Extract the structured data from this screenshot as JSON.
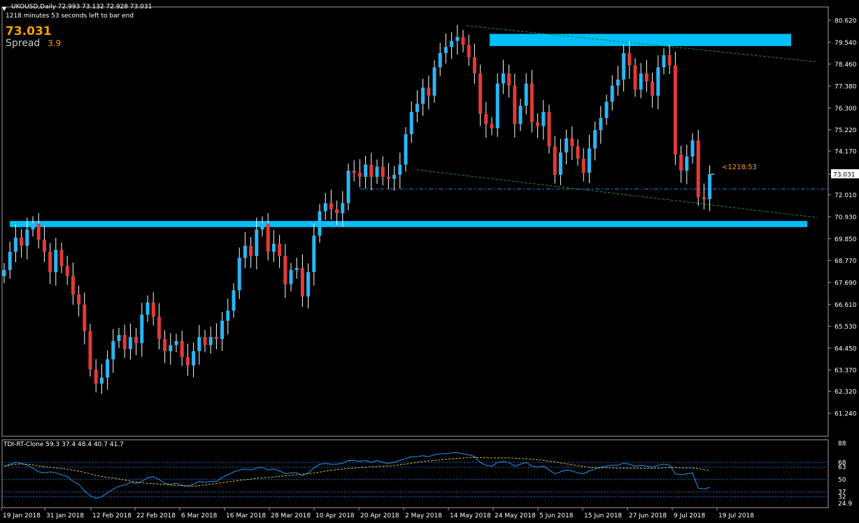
{
  "header": {
    "symbol_line": "UKOUSD,Daily  72.993 73.132 72.928 73.031",
    "countdown_line": "1218 minutes 53 seconds left to bar end",
    "last_price": "73.031",
    "spread_label": "Spread",
    "spread_value": "3.9"
  },
  "timer_label": "<1218:53",
  "indicator": {
    "label": "TDI-RT-Clone 59.3 37.4 48.4 40.7 41.7"
  },
  "colors": {
    "bull": "#29b6f6",
    "bear": "#e53935",
    "zone": "#00bfff",
    "trend": "#2e7d32",
    "dashed": "#1e88e5",
    "yellow": "#f5a300",
    "tdi": "#2196f3",
    "signal": "#d4c21a",
    "levels": "#1565c0"
  },
  "chart_data": {
    "type": "candlestick",
    "symbol": "UKOUSD",
    "timeframe": "Daily",
    "price_ylim": [
      61.24,
      80.62
    ],
    "price_ticks": [
      "80.620",
      "79.540",
      "78.460",
      "77.380",
      "76.300",
      "75.220",
      "74.170",
      "73.031",
      "72.010",
      "70.930",
      "69.850",
      "68.770",
      "67.690",
      "66.610",
      "65.530",
      "64.450",
      "63.370",
      "62.320",
      "61.240"
    ],
    "current_price": 73.031,
    "indicator_ylim": [
      24.9,
      88
    ],
    "indicator_ticks": [
      "88",
      "68",
      "63",
      "50",
      "37",
      "32",
      "24.9"
    ],
    "indicator_levels": [
      68,
      63,
      50,
      37,
      32
    ],
    "x_labels": [
      "19 Jan 2018",
      "31 Jan 2018",
      "12 Feb 2018",
      "22 Feb 2018",
      "6 Mar 2018",
      "16 Mar 2018",
      "28 Mar 2018",
      "10 Apr 2018",
      "20 Apr 2018",
      "2 May 2018",
      "14 May 2018",
      "24 May 2018",
      "5 Jun 2018",
      "15 Jun 2018",
      "27 Jun 2018",
      "9 Jul 2018",
      "19 Jul 2018"
    ],
    "closes": [
      68.3,
      69.2,
      69.9,
      69.5,
      70.3,
      70.6,
      69.8,
      69.2,
      68.2,
      69.3,
      68.5,
      68.0,
      67.1,
      66.6,
      65.3,
      63.4,
      62.7,
      63.0,
      63.9,
      64.8,
      65.1,
      64.4,
      65.0,
      64.7,
      66.1,
      66.7,
      66.0,
      64.9,
      64.3,
      64.6,
      64.8,
      64.0,
      63.6,
      64.3,
      65.0,
      64.6,
      65.0,
      64.9,
      65.8,
      66.3,
      67.3,
      68.9,
      69.5,
      69.0,
      70.3,
      70.6,
      69.2,
      69.6,
      69.0,
      67.6,
      68.3,
      68.4,
      67.0,
      68.2,
      70.0,
      71.2,
      71.6,
      71.3,
      71.1,
      71.6,
      73.2,
      73.1,
      72.9,
      73.5,
      72.9,
      73.4,
      72.9,
      72.8,
      73.0,
      73.5,
      75.0,
      76.1,
      76.5,
      77.3,
      76.9,
      78.3,
      79.0,
      79.3,
      79.6,
      79.8,
      79.4,
      78.8,
      78.0,
      76.0,
      75.5,
      75.3,
      77.5,
      78.0,
      77.4,
      75.5,
      76.4,
      77.5,
      75.6,
      75.4,
      76.1,
      74.4,
      73.0,
      74.1,
      74.8,
      74.4,
      73.8,
      73.1,
      74.3,
      75.2,
      75.8,
      76.6,
      77.4,
      77.7,
      79.0,
      78.4,
      77.2,
      78.0,
      77.6,
      76.9,
      78.3,
      78.9,
      78.4,
      74.0,
      73.2,
      73.9,
      74.7,
      71.9,
      71.8,
      73.031
    ],
    "tdi_values": [
      64,
      66,
      68,
      67,
      65,
      62,
      58,
      57,
      58,
      57,
      55,
      53,
      48,
      45,
      38,
      33,
      30,
      32,
      36,
      40,
      43,
      44,
      47,
      46,
      48,
      52,
      53,
      50,
      46,
      45,
      46,
      44,
      43,
      45,
      48,
      47,
      48,
      48,
      52,
      55,
      58,
      60,
      61,
      60,
      62,
      63,
      60,
      61,
      59,
      56,
      57,
      57,
      54,
      57,
      62,
      66,
      67,
      66,
      66,
      67,
      70,
      70,
      69,
      70,
      68,
      70,
      68,
      67,
      68,
      70,
      72,
      74,
      74,
      75,
      74,
      76,
      77,
      77,
      78,
      78,
      77,
      76,
      74,
      68,
      65,
      64,
      68,
      69,
      68,
      64,
      66,
      68,
      64,
      63,
      64,
      60,
      56,
      58,
      60,
      59,
      57,
      56,
      59,
      61,
      63,
      64,
      65,
      65,
      67,
      66,
      64,
      65,
      64,
      63,
      65,
      66,
      65,
      56,
      55,
      56,
      57,
      41,
      40,
      41.7
    ]
  }
}
